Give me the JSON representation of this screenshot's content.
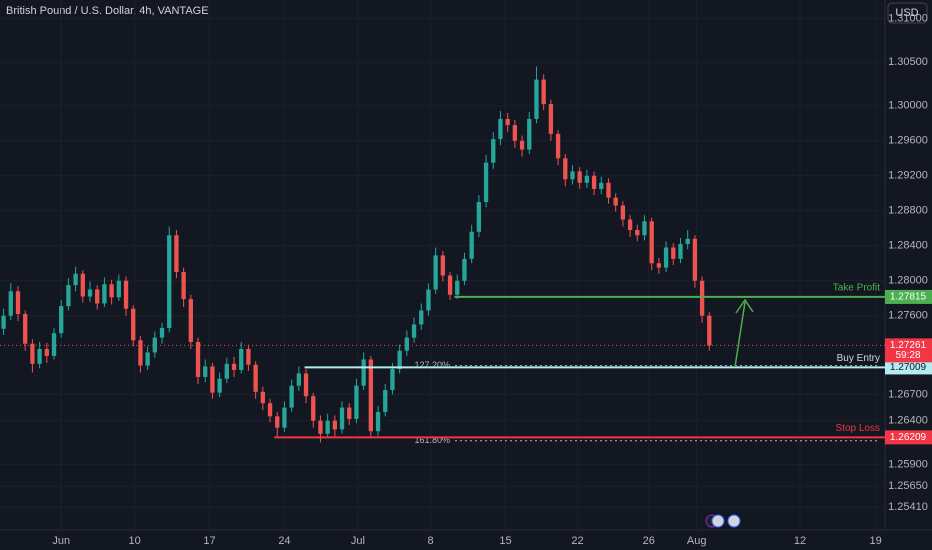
{
  "chart_data": {
    "type": "candlestick",
    "title": "British Pound / U.S. Dollar, 4h, VANTAGE",
    "currency": "USD",
    "grid": true,
    "up_color": "#26a69a",
    "down_color": "#ef5350",
    "ylim": [
      1.2515,
      1.3121
    ],
    "xlim": [
      -0.5,
      122.4
    ],
    "yticks": [
      {
        "value": 1.2541,
        "label": "1.25410"
      },
      {
        "value": 1.2565,
        "label": "1.25650"
      },
      {
        "value": 1.259,
        "label": "1.25900"
      },
      {
        "value": 1.264,
        "label": "1.26400"
      },
      {
        "value": 1.267,
        "label": "1.26700"
      },
      {
        "value": 1.276,
        "label": "1.27600"
      },
      {
        "value": 1.28,
        "label": "1.28000"
      },
      {
        "value": 1.284,
        "label": "1.28400"
      },
      {
        "value": 1.288,
        "label": "1.28800"
      },
      {
        "value": 1.292,
        "label": "1.29200"
      },
      {
        "value": 1.296,
        "label": "1.29600"
      },
      {
        "value": 1.3,
        "label": "1.30000"
      },
      {
        "value": 1.305,
        "label": "1.30500"
      },
      {
        "value": 1.31,
        "label": "1.31000"
      }
    ],
    "xticks": [
      {
        "value": 8,
        "label": "Jun"
      },
      {
        "value": 18.2,
        "label": "10"
      },
      {
        "value": 28.6,
        "label": "17"
      },
      {
        "value": 39,
        "label": "24"
      },
      {
        "value": 49.2,
        "label": "Jul"
      },
      {
        "value": 59.3,
        "label": "8"
      },
      {
        "value": 69.7,
        "label": "15"
      },
      {
        "value": 79.7,
        "label": "22"
      },
      {
        "value": 89.6,
        "label": "26"
      },
      {
        "value": 96.25,
        "label": "Aug"
      },
      {
        "value": 110.6,
        "label": "12"
      },
      {
        "value": 121.1,
        "label": "19"
      }
    ],
    "open": [
      1.2745,
      1.276,
      1.2788,
      1.2762,
      1.2728,
      1.2705,
      1.2722,
      1.2714,
      1.274,
      1.2771,
      1.2795,
      1.2808,
      1.2782,
      1.279,
      1.2774,
      1.2796,
      1.2781,
      1.28,
      1.2768,
      1.2732,
      1.2703,
      1.2718,
      1.2735,
      1.2746,
      1.2852,
      1.281,
      1.2779,
      1.273,
      1.269,
      1.2702,
      1.2672,
      1.2688,
      1.2705,
      1.2698,
      1.2722,
      1.2704,
      1.2673,
      1.266,
      1.2645,
      1.2632,
      1.2655,
      1.268,
      1.2694,
      1.2668,
      1.264,
      1.2625,
      1.264,
      1.263,
      1.2655,
      1.2642,
      1.268,
      1.271,
      1.2628,
      1.265,
      1.2675,
      1.2699,
      1.272,
      1.2735,
      1.275,
      1.2766,
      1.279,
      1.2829,
      1.2806,
      1.2784,
      1.28,
      1.2825,
      1.2856,
      1.289,
      1.2935,
      1.2962,
      1.2985,
      1.2978,
      1.296,
      1.295,
      1.2985,
      1.303,
      1.3002,
      1.2968,
      1.294,
      1.2916,
      1.2925,
      1.2912,
      1.292,
      1.2905,
      1.2912,
      1.2895,
      1.2886,
      1.287,
      1.2858,
      1.2852,
      1.2868,
      1.282,
      1.2815,
      1.2838,
      1.2825,
      1.2842,
      1.2848,
      1.28,
      1.276
    ],
    "high": [
      1.2768,
      1.2797,
      1.2794,
      1.2766,
      1.2733,
      1.273,
      1.2729,
      1.2746,
      1.2778,
      1.2803,
      1.2816,
      1.2812,
      1.2799,
      1.2795,
      1.2804,
      1.2801,
      1.2807,
      1.2805,
      1.2772,
      1.2737,
      1.2725,
      1.2742,
      1.2752,
      1.2862,
      1.2858,
      1.2815,
      1.2784,
      1.2735,
      1.271,
      1.2706,
      1.2695,
      1.2712,
      1.2713,
      1.273,
      1.2727,
      1.2708,
      1.2679,
      1.2665,
      1.265,
      1.2662,
      1.2687,
      1.2702,
      1.2699,
      1.2672,
      1.2646,
      1.2648,
      1.2646,
      1.2662,
      1.266,
      1.2688,
      1.2718,
      1.2714,
      1.2657,
      1.2682,
      1.2706,
      1.2727,
      1.2743,
      1.2758,
      1.2774,
      1.2797,
      1.2838,
      1.2834,
      1.281,
      1.2807,
      1.2832,
      1.2864,
      1.2898,
      1.2944,
      1.297,
      1.2994,
      1.2992,
      1.2984,
      1.2966,
      1.2993,
      1.3045,
      1.3036,
      1.3007,
      1.2972,
      1.2945,
      1.2932,
      1.293,
      1.2927,
      1.2925,
      1.2919,
      1.2917,
      1.29,
      1.2891,
      1.2875,
      1.2864,
      1.2875,
      1.2872,
      1.2826,
      1.2845,
      1.2843,
      1.2849,
      1.2858,
      1.2852,
      1.2805,
      1.2764
    ],
    "low": [
      1.2738,
      1.2755,
      1.2754,
      1.272,
      1.2695,
      1.27,
      1.2706,
      1.271,
      1.2735,
      1.2766,
      1.2788,
      1.2775,
      1.2776,
      1.2767,
      1.277,
      1.2773,
      1.2777,
      1.276,
      1.2725,
      1.2695,
      1.2698,
      1.2712,
      1.2728,
      1.2741,
      1.2803,
      1.277,
      1.2722,
      1.2682,
      1.2684,
      1.2665,
      1.2667,
      1.2683,
      1.269,
      1.2694,
      1.2697,
      1.2665,
      1.2652,
      1.2638,
      1.2621,
      1.2627,
      1.265,
      1.2674,
      1.266,
      1.2632,
      1.2615,
      1.262,
      1.2622,
      1.2625,
      1.2635,
      1.2637,
      1.2675,
      1.262,
      1.2622,
      1.2645,
      1.267,
      1.2694,
      1.2714,
      1.2729,
      1.2744,
      1.276,
      1.2785,
      1.2799,
      1.2778,
      1.2779,
      1.2795,
      1.282,
      1.285,
      1.2884,
      1.2928,
      1.2955,
      1.297,
      1.2952,
      1.2942,
      1.2945,
      1.298,
      1.2995,
      1.296,
      1.2932,
      1.2908,
      1.291,
      1.2905,
      1.2906,
      1.2898,
      1.2899,
      1.2888,
      1.2879,
      1.2862,
      1.285,
      1.2845,
      1.2846,
      1.2812,
      1.2808,
      1.281,
      1.2818,
      1.282,
      1.2836,
      1.2792,
      1.2752,
      1.272
    ],
    "close": [
      1.276,
      1.2788,
      1.2762,
      1.2728,
      1.2705,
      1.2722,
      1.2714,
      1.274,
      1.2771,
      1.2795,
      1.2808,
      1.2782,
      1.279,
      1.2774,
      1.2796,
      1.2781,
      1.28,
      1.2768,
      1.2732,
      1.2703,
      1.2718,
      1.2735,
      1.2746,
      1.2852,
      1.281,
      1.2779,
      1.273,
      1.269,
      1.2702,
      1.2672,
      1.2688,
      1.2705,
      1.2698,
      1.2722,
      1.2704,
      1.2673,
      1.266,
      1.2645,
      1.2632,
      1.2655,
      1.268,
      1.2694,
      1.2668,
      1.264,
      1.2625,
      1.264,
      1.263,
      1.2655,
      1.2642,
      1.268,
      1.271,
      1.2628,
      1.265,
      1.2675,
      1.2699,
      1.272,
      1.2735,
      1.275,
      1.2766,
      1.279,
      1.2829,
      1.2806,
      1.2784,
      1.28,
      1.2825,
      1.2856,
      1.289,
      1.2935,
      1.2962,
      1.2985,
      1.2978,
      1.296,
      1.295,
      1.2985,
      1.303,
      1.3002,
      1.2968,
      1.294,
      1.2916,
      1.2925,
      1.2912,
      1.292,
      1.2905,
      1.2912,
      1.2895,
      1.2886,
      1.287,
      1.2858,
      1.2852,
      1.2868,
      1.282,
      1.2815,
      1.2838,
      1.2825,
      1.2842,
      1.2848,
      1.28,
      1.276,
      1.2726
    ],
    "last_price": 1.27261,
    "countdown": "59:28",
    "levels": [
      {
        "name": "Take Profit",
        "value": 1.27815,
        "from": 62.6,
        "color": "#4caf50"
      },
      {
        "name": "Buy Entry",
        "value": 1.27009,
        "from": 41.8,
        "color": "#b2ebf2"
      },
      {
        "name": "Stop Loss",
        "value": 1.26209,
        "from": 37.6,
        "color": "#f23645"
      }
    ],
    "fib_levels": [
      {
        "label": "127.20%",
        "value": 1.2703
      },
      {
        "label": "161.80%",
        "value": 1.2617
      }
    ]
  }
}
